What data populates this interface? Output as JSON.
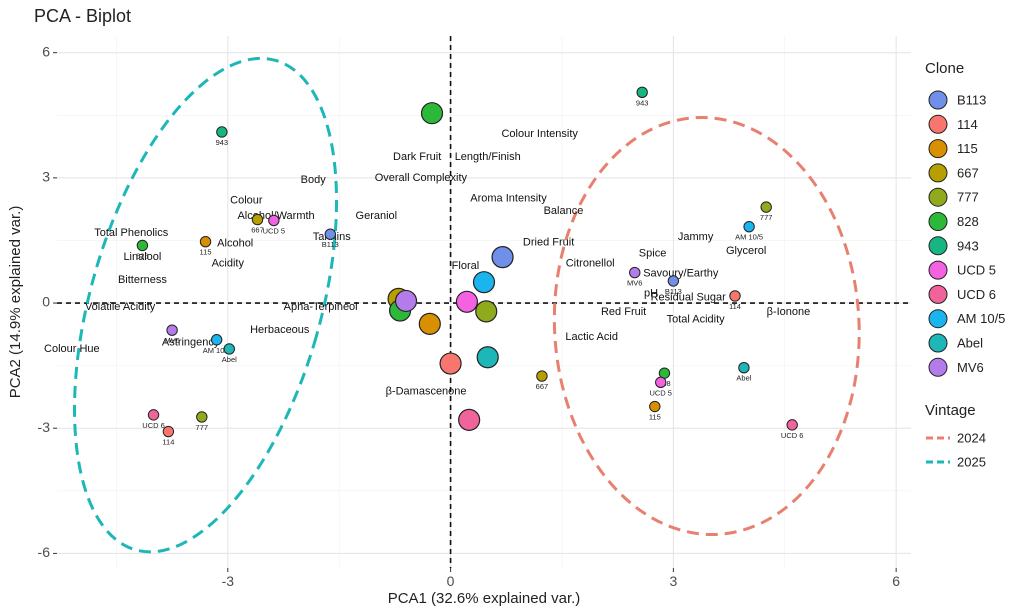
{
  "chart_data": {
    "type": "scatter",
    "title": "PCA - Biplot",
    "xlabel": "PCA1 (32.6% explained var.)",
    "ylabel": "PCA2 (14.9% explained var.)",
    "xlim": [
      -5.3,
      6.2
    ],
    "ylim": [
      -6.35,
      6.4
    ],
    "xticks": [
      -3,
      0,
      3,
      6
    ],
    "yticks": [
      -6,
      -3,
      0,
      3,
      6
    ],
    "grid": true,
    "legend": {
      "clone_title": "Clone",
      "vintage_title": "Vintage",
      "placement": "right",
      "clones": [
        {
          "name": "B113",
          "color": "#6F8FE8"
        },
        {
          "name": "114",
          "color": "#F8766D"
        },
        {
          "name": "115",
          "color": "#D89000"
        },
        {
          "name": "667",
          "color": "#B79F00"
        },
        {
          "name": "777",
          "color": "#8FAA1D"
        },
        {
          "name": "828",
          "color": "#2CB93A"
        },
        {
          "name": "943",
          "color": "#17B582"
        },
        {
          "name": "UCD 5",
          "color": "#F462E1"
        },
        {
          "name": "UCD 6",
          "color": "#F0649B"
        },
        {
          "name": "AM 10/5",
          "color": "#1AB4EE"
        },
        {
          "name": "Abel",
          "color": "#1DB7B8"
        },
        {
          "name": "MV6",
          "color": "#B47BEB"
        }
      ],
      "vintages": [
        {
          "name": "2024",
          "color": "#E8806F"
        },
        {
          "name": "2025",
          "color": "#1DB7B8"
        }
      ]
    },
    "samples": [
      {
        "clone": "943",
        "x": -3.08,
        "y": 4.1,
        "label": "943"
      },
      {
        "clone": "828",
        "x": -4.15,
        "y": 1.38,
        "label": "828"
      },
      {
        "clone": "115",
        "x": -3.3,
        "y": 1.47,
        "label": "115"
      },
      {
        "clone": "667",
        "x": -2.6,
        "y": 2.0,
        "label": "667"
      },
      {
        "clone": "UCD 5",
        "x": -2.38,
        "y": 1.98,
        "label": "UCD 5"
      },
      {
        "clone": "B113",
        "x": -1.62,
        "y": 1.65,
        "label": "B113"
      },
      {
        "clone": "MV6",
        "x": -3.75,
        "y": -0.65,
        "label": "MV6"
      },
      {
        "clone": "AM 10/5",
        "x": -3.15,
        "y": -0.88,
        "label": "AM 10/5"
      },
      {
        "clone": "Abel",
        "x": -2.98,
        "y": -1.1,
        "label": "Abel"
      },
      {
        "clone": "UCD 6",
        "x": -4.0,
        "y": -2.68,
        "label": "UCD 6"
      },
      {
        "clone": "114",
        "x": -3.8,
        "y": -3.08,
        "label": "114"
      },
      {
        "clone": "777",
        "x": -3.35,
        "y": -2.73,
        "label": "777"
      },
      {
        "clone": "943",
        "x": 2.58,
        "y": 5.05,
        "label": "943"
      },
      {
        "clone": "777",
        "x": 4.25,
        "y": 2.3,
        "label": "777"
      },
      {
        "clone": "AM 10/5",
        "x": 4.02,
        "y": 1.83,
        "label": "AM 10/5"
      },
      {
        "clone": "MV6",
        "x": 2.48,
        "y": 0.73,
        "label": "MV6"
      },
      {
        "clone": "B113",
        "x": 3.0,
        "y": 0.53,
        "label": "B113"
      },
      {
        "clone": "114",
        "x": 3.83,
        "y": 0.17,
        "label": "114"
      },
      {
        "clone": "667",
        "x": 1.23,
        "y": -1.75,
        "label": "667"
      },
      {
        "clone": "828",
        "x": 2.88,
        "y": -1.68,
        "label": "828"
      },
      {
        "clone": "UCD 5",
        "x": 2.83,
        "y": -1.9,
        "label": "UCD 5"
      },
      {
        "clone": "115",
        "x": 2.75,
        "y": -2.48,
        "label": "115"
      },
      {
        "clone": "Abel",
        "x": 3.95,
        "y": -1.55,
        "label": "Abel"
      },
      {
        "clone": "UCD 6",
        "x": 4.6,
        "y": -2.92,
        "label": "UCD 6"
      }
    ],
    "centroids": [
      {
        "clone": "828",
        "x": -0.25,
        "y": 4.55
      },
      {
        "clone": "B113",
        "x": 0.7,
        "y": 1.1
      },
      {
        "clone": "AM 10/5",
        "x": 0.45,
        "y": 0.5
      },
      {
        "clone": "667",
        "x": -0.7,
        "y": 0.1
      },
      {
        "clone": "828",
        "x": -0.68,
        "y": -0.18
      },
      {
        "clone": "MV6",
        "x": -0.6,
        "y": 0.05
      },
      {
        "clone": "UCD 5",
        "x": 0.22,
        "y": 0.03
      },
      {
        "clone": "777",
        "x": 0.48,
        "y": -0.2
      },
      {
        "clone": "115",
        "x": -0.28,
        "y": -0.5
      },
      {
        "clone": "114",
        "x": 0.0,
        "y": -1.45
      },
      {
        "clone": "Abel",
        "x": 0.5,
        "y": -1.3
      },
      {
        "clone": "UCD 6",
        "x": 0.25,
        "y": -2.8
      }
    ],
    "variables": [
      {
        "name": "Colour Intensity",
        "x": 1.2,
        "y": 4.05
      },
      {
        "name": "Dark Fruit",
        "x": -0.45,
        "y": 3.5
      },
      {
        "name": "Length/Finish",
        "x": 0.5,
        "y": 3.5
      },
      {
        "name": "Overall Complexity",
        "x": -0.4,
        "y": 3.0
      },
      {
        "name": "Body",
        "x": -1.85,
        "y": 2.95
      },
      {
        "name": "Aroma Intensity",
        "x": 0.78,
        "y": 2.5
      },
      {
        "name": "Colour",
        "x": -2.75,
        "y": 2.45
      },
      {
        "name": "Balance",
        "x": 1.52,
        "y": 2.2
      },
      {
        "name": "Alcohol/Warmth",
        "x": -2.35,
        "y": 2.08
      },
      {
        "name": "Geraniol",
        "x": -1.0,
        "y": 2.08
      },
      {
        "name": "Total Phenolics",
        "x": -4.3,
        "y": 1.68
      },
      {
        "name": "Tannins",
        "x": -1.6,
        "y": 1.58
      },
      {
        "name": "Alcohol",
        "x": -2.9,
        "y": 1.43
      },
      {
        "name": "Jammy",
        "x": 3.3,
        "y": 1.58
      },
      {
        "name": "Dried Fruit",
        "x": 1.32,
        "y": 1.45
      },
      {
        "name": "Spice",
        "x": 2.72,
        "y": 1.18
      },
      {
        "name": "Glycerol",
        "x": 3.98,
        "y": 1.25
      },
      {
        "name": "Linalool",
        "x": -4.15,
        "y": 1.1
      },
      {
        "name": "Acidity",
        "x": -3.0,
        "y": 0.95
      },
      {
        "name": "Floral",
        "x": 0.2,
        "y": 0.88
      },
      {
        "name": "Citronellol",
        "x": 1.88,
        "y": 0.95
      },
      {
        "name": "Savoury/Earthy",
        "x": 3.1,
        "y": 0.7
      },
      {
        "name": "Bitterness",
        "x": -4.15,
        "y": 0.55
      },
      {
        "name": "pH",
        "x": 2.7,
        "y": 0.23
      },
      {
        "name": "Residual Sugar",
        "x": 3.2,
        "y": 0.13
      },
      {
        "name": "Volatile Acidity",
        "x": -4.45,
        "y": -0.1
      },
      {
        "name": "Apha-Terpineol",
        "x": -1.75,
        "y": -0.1
      },
      {
        "name": "Red Fruit",
        "x": 2.33,
        "y": -0.22
      },
      {
        "name": "β-Ionone",
        "x": 4.55,
        "y": -0.22
      },
      {
        "name": "Total Acidity",
        "x": 3.3,
        "y": -0.4
      },
      {
        "name": "Herbaceous",
        "x": -2.3,
        "y": -0.65
      },
      {
        "name": "Lactic Acid",
        "x": 1.9,
        "y": -0.82
      },
      {
        "name": "Astringency",
        "x": -3.5,
        "y": -0.95
      },
      {
        "name": "Colour Hue",
        "x": -5.1,
        "y": -1.1
      },
      {
        "name": "β-Damascenone",
        "x": -0.33,
        "y": -2.12
      }
    ],
    "ellipses": [
      {
        "vintage": "2024",
        "cx": 3.45,
        "cy": -0.55,
        "rx": 2.05,
        "ry": 5.0,
        "angle": -3
      },
      {
        "vintage": "2025",
        "cx": -3.3,
        "cy": -0.05,
        "rx": 1.55,
        "ry": 6.1,
        "angle": 16
      }
    ]
  }
}
